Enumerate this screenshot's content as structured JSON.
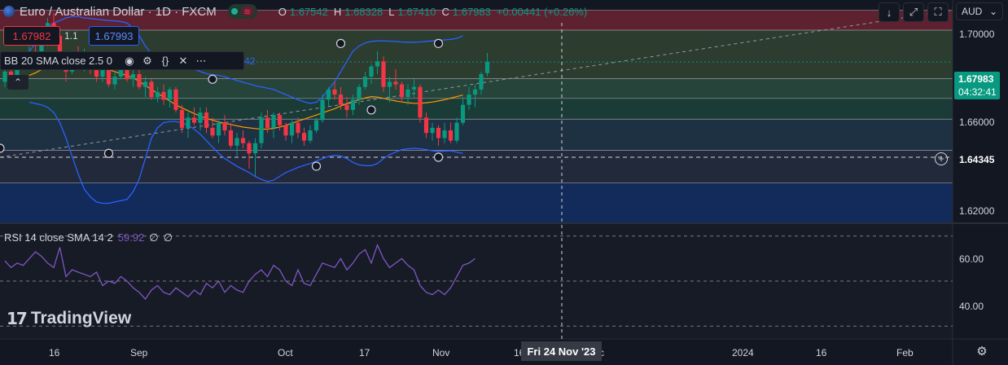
{
  "header": {
    "symbol": "Euro / Australian Dollar · 1D · FXCM",
    "ohlc": [
      {
        "key": "O",
        "value": "1.67542"
      },
      {
        "key": "H",
        "value": "1.68328"
      },
      {
        "key": "L",
        "value": "1.67410"
      },
      {
        "key": "C",
        "value": "1.67983"
      }
    ],
    "change": "+0.00441 (+0.26%)",
    "currency": "AUD"
  },
  "trade": {
    "sell_price": "1.67982",
    "quantity": "1.1",
    "buy_price": "1.67993"
  },
  "bb_legend": {
    "text": "BB 20 SMA close 2.5 0",
    "tail": "42"
  },
  "rsi_legend": {
    "label": "RSI 14 close SMA 14 2",
    "value": "59.92",
    "na1": "∅",
    "na2": "∅"
  },
  "price_tags": {
    "last_price": "1.67983",
    "countdown": "04:32:41",
    "crosshair_price": "1.64345"
  },
  "crosshair_date": "Fri 24 Nov '23",
  "watermark": "TradingView",
  "colors": {
    "background": "#131722",
    "up": "#089981",
    "down": "#f23645",
    "bollinger": "#2962ff",
    "sma": "#ff9800",
    "rsi": "#7e57c2"
  },
  "chart_data": {
    "type": "candlestick",
    "y_axis_labels": [
      "1.70000",
      "1.68000",
      "1.66000",
      "1.64000",
      "1.62000"
    ],
    "rsi_axis_labels": [
      "60.00",
      "40.00"
    ],
    "rsi_guides": [
      70,
      50,
      30
    ],
    "x_axis_labels": [
      "16",
      "Sep",
      "Oct",
      "17",
      "Nov",
      "16",
      "Fri 24 Nov '23",
      "2024",
      "16",
      "Feb"
    ],
    "ylim": [
      1.617,
      1.704
    ],
    "rsi_ylim": [
      25,
      75
    ],
    "zones": [
      {
        "from": 1.7,
        "to": 1.6922,
        "color": "#5d2130"
      },
      {
        "from": 1.6922,
        "to": 1.6732,
        "color": "#2c3c2f"
      },
      {
        "from": 1.6732,
        "to": 1.6655,
        "color": "#26443a"
      },
      {
        "from": 1.6655,
        "to": 1.6574,
        "color": "#1b3b37"
      },
      {
        "from": 1.6574,
        "to": 1.6452,
        "color": "#1e3142"
      },
      {
        "from": 1.6452,
        "to": 1.6324,
        "color": "#22293a"
      },
      {
        "from": 1.6324,
        "to": 1.617,
        "color": "#122b5a"
      }
    ],
    "candles": [
      [
        1.672,
        1.678,
        1.67,
        1.676
      ],
      [
        1.676,
        1.68,
        1.673,
        1.674
      ],
      [
        1.674,
        1.679,
        1.672,
        1.678
      ],
      [
        1.678,
        1.683,
        1.677,
        1.68
      ],
      [
        1.68,
        1.686,
        1.678,
        1.684
      ],
      [
        1.684,
        1.688,
        1.68,
        1.681
      ],
      [
        1.681,
        1.69,
        1.68,
        1.688
      ],
      [
        1.688,
        1.697,
        1.686,
        1.695
      ],
      [
        1.695,
        1.699,
        1.688,
        1.69
      ],
      [
        1.69,
        1.692,
        1.68,
        1.682
      ],
      [
        1.682,
        1.683,
        1.672,
        1.676
      ],
      [
        1.676,
        1.684,
        1.675,
        1.682
      ],
      [
        1.682,
        1.686,
        1.678,
        1.679
      ],
      [
        1.679,
        1.685,
        1.676,
        1.683
      ],
      [
        1.683,
        1.684,
        1.675,
        1.677
      ],
      [
        1.677,
        1.68,
        1.672,
        1.674
      ],
      [
        1.674,
        1.679,
        1.672,
        1.677
      ],
      [
        1.677,
        1.681,
        1.67,
        1.671
      ],
      [
        1.671,
        1.676,
        1.669,
        1.674
      ],
      [
        1.674,
        1.68,
        1.673,
        1.679
      ],
      [
        1.679,
        1.68,
        1.672,
        1.673
      ],
      [
        1.673,
        1.678,
        1.67,
        1.675
      ],
      [
        1.675,
        1.677,
        1.669,
        1.67
      ],
      [
        1.67,
        1.674,
        1.666,
        1.672
      ],
      [
        1.672,
        1.673,
        1.665,
        1.666
      ],
      [
        1.666,
        1.67,
        1.664,
        1.668
      ],
      [
        1.668,
        1.671,
        1.663,
        1.665
      ],
      [
        1.665,
        1.67,
        1.662,
        1.669
      ],
      [
        1.669,
        1.67,
        1.66,
        1.661
      ],
      [
        1.661,
        1.663,
        1.652,
        1.654
      ],
      [
        1.654,
        1.66,
        1.65,
        1.658
      ],
      [
        1.658,
        1.662,
        1.655,
        1.656
      ],
      [
        1.656,
        1.662,
        1.653,
        1.66
      ],
      [
        1.66,
        1.662,
        1.652,
        1.654
      ],
      [
        1.654,
        1.658,
        1.65,
        1.651
      ],
      [
        1.651,
        1.657,
        1.648,
        1.656
      ],
      [
        1.656,
        1.659,
        1.651,
        1.653
      ],
      [
        1.653,
        1.656,
        1.646,
        1.647
      ],
      [
        1.647,
        1.652,
        1.643,
        1.65
      ],
      [
        1.65,
        1.653,
        1.646,
        1.648
      ],
      [
        1.648,
        1.649,
        1.638,
        1.644
      ],
      [
        1.644,
        1.65,
        1.635,
        1.648
      ],
      [
        1.648,
        1.66,
        1.646,
        1.658
      ],
      [
        1.658,
        1.661,
        1.652,
        1.654
      ],
      [
        1.654,
        1.66,
        1.65,
        1.659
      ],
      [
        1.659,
        1.66,
        1.653,
        1.655
      ],
      [
        1.655,
        1.656,
        1.649,
        1.651
      ],
      [
        1.651,
        1.657,
        1.648,
        1.656
      ],
      [
        1.656,
        1.658,
        1.65,
        1.652
      ],
      [
        1.652,
        1.654,
        1.647,
        1.649
      ],
      [
        1.649,
        1.655,
        1.648,
        1.653
      ],
      [
        1.653,
        1.658,
        1.652,
        1.657
      ],
      [
        1.657,
        1.667,
        1.656,
        1.665
      ],
      [
        1.665,
        1.67,
        1.662,
        1.669
      ],
      [
        1.669,
        1.672,
        1.665,
        1.667
      ],
      [
        1.667,
        1.67,
        1.661,
        1.663
      ],
      [
        1.663,
        1.666,
        1.658,
        1.661
      ],
      [
        1.661,
        1.667,
        1.659,
        1.665
      ],
      [
        1.665,
        1.671,
        1.663,
        1.67
      ],
      [
        1.67,
        1.676,
        1.669,
        1.674
      ],
      [
        1.674,
        1.679,
        1.671,
        1.678
      ],
      [
        1.678,
        1.684,
        1.675,
        1.68
      ],
      [
        1.68,
        1.682,
        1.668,
        1.67
      ],
      [
        1.67,
        1.674,
        1.664,
        1.672
      ],
      [
        1.672,
        1.677,
        1.669,
        1.671
      ],
      [
        1.671,
        1.672,
        1.664,
        1.666
      ],
      [
        1.666,
        1.671,
        1.663,
        1.669
      ],
      [
        1.669,
        1.673,
        1.666,
        1.67
      ],
      [
        1.67,
        1.671,
        1.656,
        1.658
      ],
      [
        1.658,
        1.66,
        1.65,
        1.652
      ],
      [
        1.652,
        1.656,
        1.649,
        1.654
      ],
      [
        1.654,
        1.655,
        1.647,
        1.65
      ],
      [
        1.65,
        1.656,
        1.648,
        1.653
      ],
      [
        1.653,
        1.656,
        1.648,
        1.649
      ],
      [
        1.649,
        1.658,
        1.648,
        1.656
      ],
      [
        1.656,
        1.666,
        1.655,
        1.663
      ],
      [
        1.663,
        1.67,
        1.661,
        1.667
      ],
      [
        1.667,
        1.671,
        1.662,
        1.669
      ],
      [
        1.669,
        1.676,
        1.667,
        1.675
      ],
      [
        1.6754,
        1.6833,
        1.6741,
        1.6798
      ]
    ],
    "sma20": [
      1.6745,
      1.6755,
      1.6768,
      1.6782,
      1.679,
      1.6795,
      1.68,
      1.6802,
      1.68,
      1.6795,
      1.679,
      1.6782,
      1.6775,
      1.6768,
      1.676,
      1.6752,
      1.6745,
      1.6735,
      1.6722,
      1.6705,
      1.669,
      1.6675,
      1.666,
      1.6645,
      1.663,
      1.6618,
      1.6607,
      1.6596,
      1.6586,
      1.6577,
      1.657,
      1.6563,
      1.6558,
      1.6553,
      1.6548,
      1.6543,
      1.654,
      1.6537,
      1.6535,
      1.6535,
      1.6538,
      1.6543,
      1.655,
      1.6558,
      1.6566,
      1.6574,
      1.6582,
      1.659,
      1.6598,
      1.6607,
      1.6615,
      1.6625,
      1.6635,
      1.6643,
      1.665,
      1.6657,
      1.6662,
      1.666,
      1.6655,
      1.665,
      1.6645,
      1.6641,
      1.6638,
      1.6636,
      1.6636,
      1.6638,
      1.6641,
      1.6645,
      1.665,
      1.6656,
      1.6662,
      1.6668
    ],
    "bb_upper": [
      1.684,
      1.687,
      1.69,
      1.693,
      1.695,
      1.696,
      1.697,
      1.6975,
      1.6975,
      1.697,
      1.6968,
      1.6965,
      1.6962,
      1.696,
      1.6958,
      1.6956,
      1.695,
      1.693,
      1.69,
      1.686,
      1.683,
      1.681,
      1.68,
      1.6795,
      1.679,
      1.6785,
      1.678,
      1.677,
      1.676,
      1.6752,
      1.6748,
      1.6745,
      1.674,
      1.6732,
      1.6725,
      1.6718,
      1.6712,
      1.6705,
      1.67,
      1.6695,
      1.669,
      1.668,
      1.667,
      1.666,
      1.665,
      1.6642,
      1.6636,
      1.664,
      1.666,
      1.669,
      1.672,
      1.676,
      1.68,
      1.684,
      1.686,
      1.6872,
      1.6878,
      1.688,
      1.688,
      1.6879,
      1.6878,
      1.6876,
      1.6875,
      1.6875,
      1.6876,
      1.6878,
      1.688,
      1.6882,
      1.6884,
      1.6886,
      1.689,
      1.69
    ],
    "bb_lower": [
      1.664,
      1.6635,
      1.663,
      1.662,
      1.66,
      1.656,
      1.65,
      1.643,
      1.636,
      1.63,
      1.627,
      1.625,
      1.6245,
      1.6245,
      1.625,
      1.6255,
      1.626,
      1.629,
      1.634,
      1.642,
      1.65,
      1.654,
      1.656,
      1.6565,
      1.6565,
      1.656,
      1.655,
      1.6535,
      1.6515,
      1.649,
      1.6465,
      1.644,
      1.642,
      1.6405,
      1.639,
      1.6377,
      1.6365,
      1.635,
      1.6338,
      1.633,
      1.6335,
      1.635,
      1.6365,
      1.6375,
      1.6385,
      1.6393,
      1.64,
      1.641,
      1.642,
      1.6428,
      1.6432,
      1.643,
      1.642,
      1.6405,
      1.6395,
      1.6392,
      1.6392,
      1.64,
      1.642,
      1.6435,
      1.6445,
      1.6455,
      1.6458,
      1.646,
      1.6458,
      1.6455,
      1.645,
      1.6448,
      1.6449,
      1.645,
      1.6445,
      1.644
    ],
    "rsi": [
      59,
      56,
      58,
      57,
      60,
      63,
      61,
      58,
      56,
      65,
      52,
      55,
      54,
      53,
      52,
      54,
      48,
      50,
      49,
      52,
      50,
      47,
      45,
      42,
      46,
      48,
      45,
      44,
      47,
      45,
      43,
      46,
      44,
      49,
      47,
      50,
      45,
      48,
      46,
      45,
      50,
      53,
      55,
      52,
      57,
      55,
      50,
      48,
      55,
      49,
      48,
      53,
      58,
      57,
      56,
      60,
      55,
      58,
      62,
      64,
      58,
      66,
      60,
      56,
      58,
      60,
      57,
      55,
      48,
      45,
      44,
      46,
      44,
      47,
      52,
      57,
      58,
      60
    ]
  }
}
